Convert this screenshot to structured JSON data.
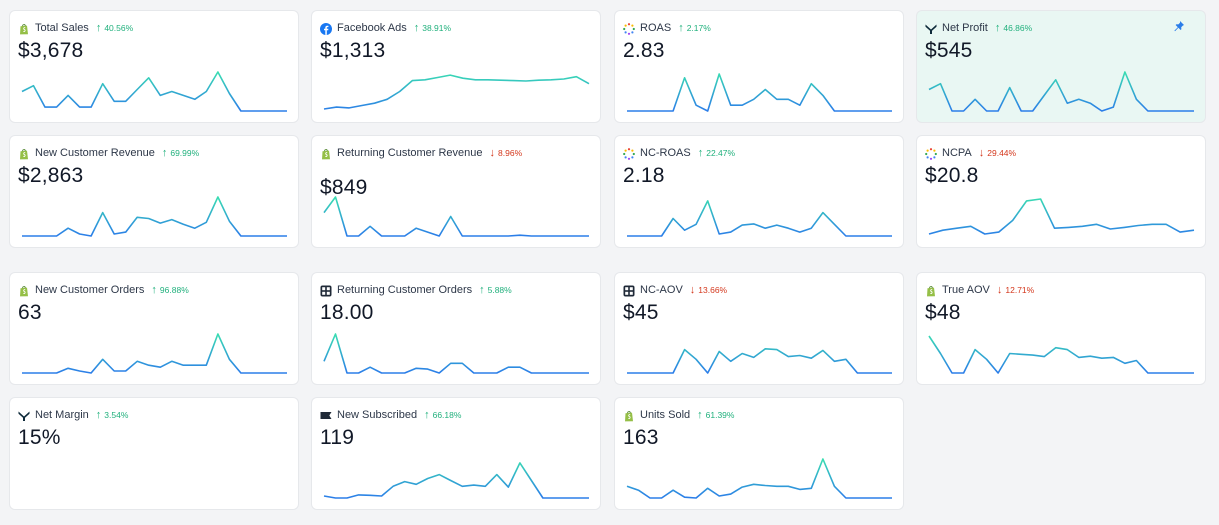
{
  "metrics": [
    {
      "title": "Total Sales",
      "change": "40.56%",
      "direction": "up",
      "value": "$3,678",
      "icon": "shopify-icon",
      "spark": [
        0.5,
        0.65,
        0.1,
        0.1,
        0.4,
        0.1,
        0.1,
        0.7,
        0.25,
        0.25,
        0.55,
        0.85,
        0.4,
        0.5,
        0.4,
        0.3,
        0.5,
        1.0,
        0.45,
        0.0,
        0.0,
        0.0,
        0.0,
        0.0
      ]
    },
    {
      "title": "Facebook Ads",
      "change": "38.91%",
      "direction": "up",
      "value": "$1,313",
      "icon": "facebook-icon",
      "spark": [
        0.05,
        0.1,
        0.08,
        0.14,
        0.2,
        0.3,
        0.5,
        0.78,
        0.8,
        0.86,
        0.92,
        0.84,
        0.8,
        0.8,
        0.79,
        0.78,
        0.77,
        0.79,
        0.8,
        0.82,
        0.88,
        0.7
      ]
    },
    {
      "title": "ROAS",
      "change": "2.17%",
      "direction": "up",
      "value": "2.83",
      "icon": "spinner-icon",
      "spark": [
        0.0,
        0.0,
        0.0,
        0.0,
        0.0,
        0.85,
        0.15,
        0.0,
        0.95,
        0.15,
        0.15,
        0.3,
        0.55,
        0.3,
        0.3,
        0.15,
        0.7,
        0.4,
        0.0,
        0.0,
        0.0,
        0.0,
        0.0,
        0.0
      ]
    },
    {
      "title": "Net Profit",
      "change": "46.86%",
      "direction": "up",
      "value": "$545",
      "icon": "triple-whale-icon",
      "spark": [
        0.55,
        0.7,
        0.0,
        0.0,
        0.3,
        0.0,
        0.0,
        0.6,
        0.0,
        0.0,
        0.4,
        0.8,
        0.2,
        0.3,
        0.2,
        0.0,
        0.1,
        1.0,
        0.3,
        0.0,
        0.0,
        0.0,
        0.0,
        0.0
      ],
      "pinned": true
    },
    {
      "title": "New Customer Revenue",
      "change": "69.99%",
      "direction": "up",
      "value": "$2,863",
      "icon": "shopify-icon",
      "spark": [
        0.0,
        0.0,
        0.0,
        0.0,
        0.2,
        0.05,
        0.0,
        0.6,
        0.05,
        0.1,
        0.48,
        0.45,
        0.33,
        0.42,
        0.3,
        0.2,
        0.35,
        1.0,
        0.38,
        0.0,
        0.0,
        0.0,
        0.0,
        0.0
      ]
    },
    {
      "title": "Returning Customer Revenue",
      "change": "8.96%",
      "direction": "down",
      "value": "$849",
      "icon": "shopify-icon",
      "spark": [
        0.6,
        1.0,
        0.0,
        0.0,
        0.25,
        0.0,
        0.0,
        0.0,
        0.2,
        0.1,
        0.0,
        0.5,
        0.0,
        0.0,
        0.0,
        0.0,
        0.0,
        0.02,
        0.0,
        0.0,
        0.0,
        0.0,
        0.0,
        0.0
      ],
      "valueLow": true
    },
    {
      "title": "NC-ROAS",
      "change": "22.47%",
      "direction": "up",
      "value": "2.18",
      "icon": "spinner-icon",
      "spark": [
        0.0,
        0.0,
        0.0,
        0.0,
        0.45,
        0.15,
        0.3,
        0.9,
        0.05,
        0.1,
        0.28,
        0.31,
        0.2,
        0.28,
        0.2,
        0.1,
        0.2,
        0.6,
        0.3,
        0.0,
        0.0,
        0.0,
        0.0,
        0.0
      ]
    },
    {
      "title": "NCPA",
      "change": "29.44%",
      "direction": "down",
      "value": "$20.8",
      "icon": "spinner-icon",
      "spark": [
        0.05,
        0.15,
        0.2,
        0.25,
        0.05,
        0.1,
        0.4,
        0.9,
        0.95,
        0.2,
        0.22,
        0.25,
        0.3,
        0.18,
        0.22,
        0.27,
        0.3,
        0.3,
        0.1,
        0.15
      ]
    },
    {
      "title": "New Customer Orders",
      "change": "96.88%",
      "direction": "up",
      "value": "63",
      "icon": "shopify-icon",
      "spark": [
        0.0,
        0.0,
        0.0,
        0.0,
        0.12,
        0.05,
        0.0,
        0.35,
        0.05,
        0.05,
        0.3,
        0.2,
        0.15,
        0.3,
        0.2,
        0.2,
        0.2,
        1.0,
        0.35,
        0.0,
        0.0,
        0.0,
        0.0,
        0.0
      ]
    },
    {
      "title": "Returning Customer Orders",
      "change": "5.88%",
      "direction": "up",
      "value": "18.00",
      "icon": "grid-icon",
      "spark": [
        0.3,
        1.0,
        0.0,
        0.0,
        0.15,
        0.0,
        0.0,
        0.0,
        0.12,
        0.1,
        0.0,
        0.25,
        0.25,
        0.0,
        0.0,
        0.0,
        0.15,
        0.15,
        0.0,
        0.0,
        0.0,
        0.0,
        0.0,
        0.0
      ]
    },
    {
      "title": "NC-AOV",
      "change": "13.66%",
      "direction": "down",
      "value": "$45",
      "icon": "grid-icon",
      "spark": [
        0.0,
        0.0,
        0.0,
        0.0,
        0.0,
        0.6,
        0.35,
        0.0,
        0.55,
        0.3,
        0.5,
        0.4,
        0.62,
        0.6,
        0.42,
        0.45,
        0.38,
        0.58,
        0.3,
        0.35,
        0.0,
        0.0,
        0.0,
        0.0
      ]
    },
    {
      "title": "True AOV",
      "change": "12.71%",
      "direction": "down",
      "value": "$48",
      "icon": "shopify-icon",
      "spark": [
        0.95,
        0.5,
        0.0,
        0.0,
        0.6,
        0.35,
        0.0,
        0.5,
        0.48,
        0.46,
        0.42,
        0.65,
        0.6,
        0.4,
        0.43,
        0.38,
        0.4,
        0.25,
        0.32,
        0.0,
        0.0,
        0.0,
        0.0,
        0.0
      ]
    },
    {
      "title": "Net Margin",
      "change": "3.54%",
      "direction": "up",
      "value": "15%",
      "icon": "triple-whale-icon",
      "spark": []
    },
    {
      "title": "New Subscribed",
      "change": "66.18%",
      "direction": "up",
      "value": "119",
      "icon": "flag-icon",
      "spark": [
        0.05,
        0.0,
        0.0,
        0.08,
        0.07,
        0.05,
        0.3,
        0.42,
        0.35,
        0.5,
        0.6,
        0.45,
        0.3,
        0.33,
        0.3,
        0.6,
        0.28,
        0.9,
        0.45,
        0.0,
        0.0,
        0.0,
        0.0,
        0.0
      ]
    },
    {
      "title": "Units Sold",
      "change": "61.39%",
      "direction": "up",
      "value": "163",
      "icon": "shopify-icon",
      "spark": [
        0.3,
        0.2,
        0.0,
        0.0,
        0.2,
        0.02,
        0.0,
        0.25,
        0.05,
        0.1,
        0.28,
        0.35,
        0.32,
        0.3,
        0.3,
        0.22,
        0.25,
        1.0,
        0.3,
        0.0,
        0.0,
        0.0,
        0.0,
        0.0
      ]
    }
  ],
  "colors": {
    "lineLow": "#2b7de9",
    "lineHigh": "#3ae0b0",
    "up": "#20b07c",
    "down": "#d4371c"
  }
}
